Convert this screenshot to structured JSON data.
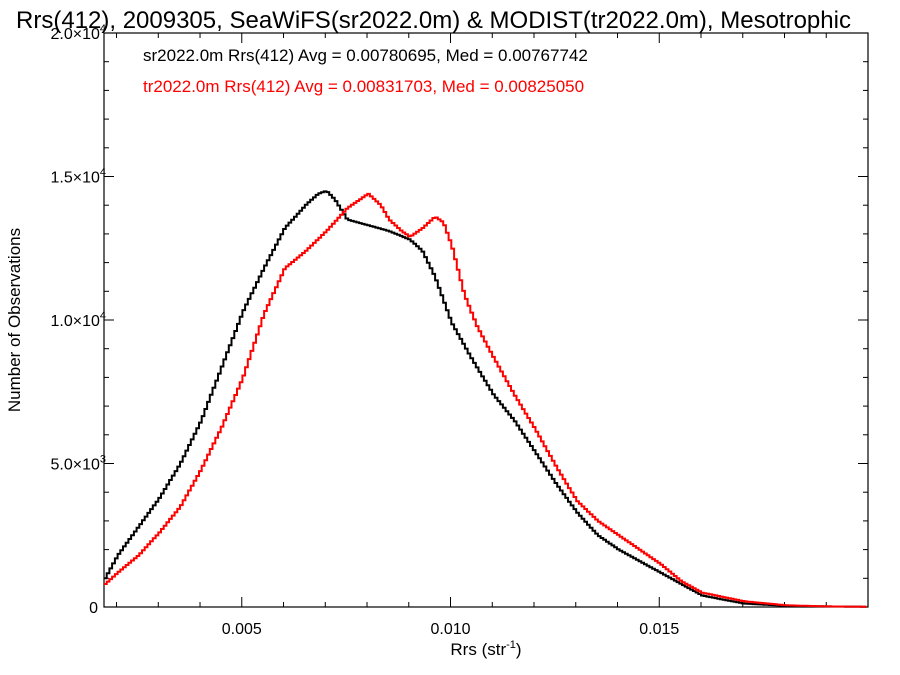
{
  "chart_data": {
    "type": "line",
    "title": "Rrs(412), 2009305, SeaWiFS(sr2022.0m) & MODIST(tr2022.0m), Mesotrophic",
    "xlabel": "Rrs (str",
    "xlabel_sup": "-1",
    "xlabel_end": ")",
    "ylabel": "Number of Observations",
    "xlim": [
      0.0017,
      0.02
    ],
    "ylim": [
      0,
      20000
    ],
    "grid": false,
    "x_ticks": [
      {
        "value": 0.005,
        "label": "0.005"
      },
      {
        "value": 0.01,
        "label": "0.010"
      },
      {
        "value": 0.015,
        "label": "0.015"
      }
    ],
    "y_ticks": [
      {
        "value": 0,
        "base": "0",
        "exp": ""
      },
      {
        "value": 5000,
        "base": "5.0×10",
        "exp": "3"
      },
      {
        "value": 10000,
        "base": "1.0×10",
        "exp": "4"
      },
      {
        "value": 15000,
        "base": "1.5×10",
        "exp": "4"
      },
      {
        "value": 20000,
        "base": "2.0×10",
        "exp": "4"
      }
    ],
    "series": [
      {
        "name": "sr2022.0m Rrs(412) Avg = 0.00780695, Med = 0.00767742",
        "color": "#000000",
        "x": [
          0.0017,
          0.002,
          0.0025,
          0.003,
          0.0035,
          0.004,
          0.0045,
          0.005,
          0.0055,
          0.006,
          0.0065,
          0.0068,
          0.007,
          0.0072,
          0.0075,
          0.008,
          0.0085,
          0.009,
          0.0093,
          0.0096,
          0.01,
          0.0105,
          0.011,
          0.0115,
          0.012,
          0.0125,
          0.013,
          0.0135,
          0.014,
          0.0145,
          0.015,
          0.0155,
          0.016,
          0.017,
          0.018,
          0.019,
          0.02
        ],
        "y": [
          1000,
          1800,
          2800,
          3800,
          5000,
          6500,
          8400,
          10300,
          11800,
          13200,
          14000,
          14400,
          14500,
          14200,
          13500,
          13300,
          13100,
          12800,
          12400,
          11500,
          9900,
          8600,
          7400,
          6500,
          5400,
          4300,
          3300,
          2500,
          2000,
          1600,
          1200,
          800,
          400,
          120,
          40,
          20,
          10
        ]
      },
      {
        "name": "tr2022.0m Rrs(412) Avg = 0.00831703, Med = 0.00825050",
        "color": "#ff0000",
        "x": [
          0.0017,
          0.002,
          0.0025,
          0.003,
          0.0035,
          0.004,
          0.0045,
          0.005,
          0.0055,
          0.006,
          0.0065,
          0.007,
          0.0075,
          0.008,
          0.0083,
          0.0085,
          0.0088,
          0.009,
          0.0093,
          0.0096,
          0.0098,
          0.01,
          0.0103,
          0.0106,
          0.011,
          0.0115,
          0.012,
          0.0125,
          0.013,
          0.0135,
          0.014,
          0.0145,
          0.015,
          0.0155,
          0.016,
          0.017,
          0.018,
          0.019,
          0.02
        ],
        "y": [
          800,
          1200,
          1800,
          2600,
          3500,
          4800,
          6300,
          8000,
          10200,
          11800,
          12400,
          13100,
          13900,
          14400,
          14000,
          13500,
          13100,
          12900,
          13200,
          13600,
          13400,
          12600,
          10900,
          9800,
          8700,
          7400,
          6200,
          4900,
          3700,
          3000,
          2500,
          2000,
          1500,
          900,
          500,
          200,
          60,
          20,
          10
        ]
      }
    ]
  }
}
